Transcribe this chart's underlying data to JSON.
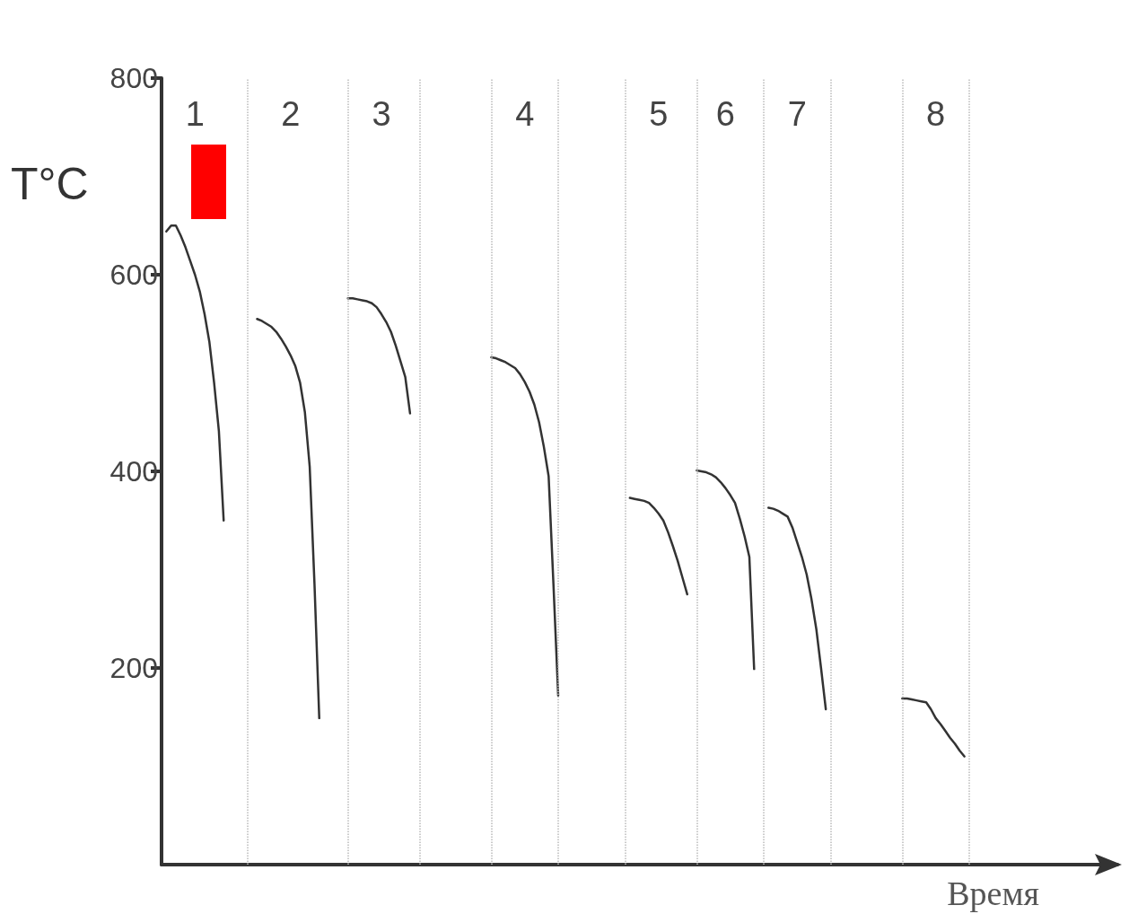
{
  "chart_data": {
    "type": "line",
    "xlabel": "Время",
    "ylabel": "T°C",
    "categories": [
      null,
      null,
      null,
      null,
      null,
      null,
      null,
      null,
      null,
      null,
      null,
      null,
      null,
      null,
      null,
      null,
      null,
      null,
      null,
      null,
      null,
      null,
      null,
      null,
      null,
      null,
      null,
      null,
      null,
      null,
      null,
      null,
      null,
      null,
      null,
      null,
      null,
      null,
      null,
      null,
      null,
      null,
      null,
      null,
      null,
      null,
      null,
      null,
      null,
      null,
      null,
      null,
      null,
      null,
      null,
      null,
      null,
      null,
      null,
      null,
      null,
      null,
      null,
      null,
      null,
      null,
      null,
      null,
      null,
      null,
      null,
      null,
      null,
      null,
      null,
      null,
      null,
      null,
      null,
      null,
      null,
      null,
      null,
      null,
      null,
      null,
      null,
      null,
      null,
      null,
      null,
      null,
      null,
      null,
      null,
      null,
      null,
      null,
      null,
      null,
      null,
      null,
      null,
      null,
      null,
      null,
      null,
      null,
      null,
      null,
      null,
      null,
      null,
      null,
      null,
      null,
      null,
      null,
      null,
      null,
      null,
      null,
      null,
      null,
      null,
      null,
      null,
      null,
      null,
      null,
      null,
      null,
      null,
      null,
      null,
      null,
      null,
      null,
      null,
      null,
      null,
      null,
      null,
      null,
      null,
      null,
      null,
      null,
      null,
      null,
      null,
      null,
      null,
      null,
      null,
      null,
      null,
      null,
      null,
      null,
      null,
      null,
      null,
      null,
      null,
      null,
      null,
      null,
      null,
      null,
      null,
      null,
      null,
      null,
      null,
      null,
      null,
      null,
      null,
      null,
      null,
      null,
      null,
      null,
      null,
      null,
      null,
      null,
      null,
      null,
      null,
      null,
      null,
      null,
      null,
      null,
      null,
      null,
      null,
      null,
      null
    ],
    "ylim": [
      0,
      800
    ],
    "yticks": [
      200,
      400,
      600,
      800
    ],
    "tick_labels": "y",
    "grid": false,
    "line_style": "solid",
    "series": [
      {
        "color": "#333333",
        "values": [
          null,
          644,
          650,
          650,
          640,
          628,
          614,
          600,
          583,
          560,
          532,
          490,
          441,
          350,
          null,
          null,
          null,
          null,
          null,
          null,
          555,
          553,
          550,
          547,
          542,
          535,
          527,
          518,
          507,
          490,
          460,
          405,
          286,
          149,
          null,
          null,
          null,
          null,
          null,
          576,
          576,
          575,
          574,
          573,
          571,
          567,
          560,
          552,
          542,
          528,
          512,
          496,
          459,
          null,
          null,
          null,
          null,
          null,
          null,
          null,
          null,
          null,
          null,
          null,
          null,
          null,
          null,
          null,
          null,
          516,
          515,
          513,
          511,
          508,
          505,
          499,
          491,
          481,
          468,
          450,
          425,
          395,
          286,
          172,
          null,
          null,
          null,
          null,
          null,
          null,
          null,
          null,
          null,
          null,
          null,
          null,
          null,
          null,
          373,
          372,
          371,
          370,
          368,
          363,
          357,
          350,
          338,
          324,
          309,
          292,
          275,
          null,
          401,
          400,
          399,
          397,
          394,
          389,
          383,
          376,
          368,
          352,
          334,
          313,
          199,
          null,
          null,
          363,
          362,
          360,
          357,
          354,
          343,
          328,
          313,
          295,
          270,
          240,
          200,
          158,
          null,
          null,
          null,
          null,
          null,
          null,
          null,
          null,
          null,
          null,
          null,
          null,
          null,
          null,
          null,
          169,
          169,
          168,
          167,
          166,
          165,
          158,
          149,
          143,
          136,
          129,
          123,
          116,
          110,
          null,
          null,
          null,
          null,
          null,
          null,
          null,
          null,
          null,
          null,
          null,
          null,
          null,
          null,
          null,
          null,
          null,
          null,
          null,
          null,
          null,
          null,
          null,
          null,
          null,
          null,
          null,
          null,
          null,
          null,
          null,
          null
        ]
      }
    ],
    "annotations": [
      "1",
      "2",
      "3",
      "4",
      "5",
      "6",
      "7",
      "8"
    ]
  }
}
